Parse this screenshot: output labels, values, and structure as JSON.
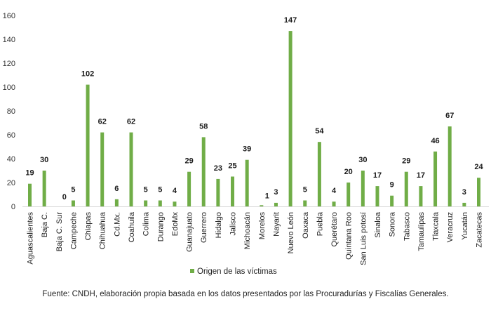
{
  "chart_data": {
    "type": "bar",
    "title": "",
    "xlabel": "",
    "ylabel": "",
    "ylim": [
      0,
      160
    ],
    "yticks": [
      0,
      20,
      40,
      60,
      80,
      100,
      120,
      140,
      160
    ],
    "grid": false,
    "legend_position": "bottom",
    "bar_color": "#70ad47",
    "categories": [
      "Aguascalientes",
      "Baja C.",
      "Baja C. Sur",
      "Campeche",
      "Chiapas",
      "Chihuahua",
      "Cd.Mx.",
      "Coahuila",
      "Colima",
      "Durango",
      "EdoMx",
      "Guanajuato",
      "Guerrero",
      "Hidalgo",
      "Jalisco",
      "Michoacán",
      "Morelos",
      "Nayarit",
      "Nuevo León",
      "Oaxaca",
      "Puebla",
      "Querétaro",
      "Quintana Roo",
      "San Luis potosí",
      "Sinaloa",
      "Sonora",
      "Tabasco",
      "Tamaulipas",
      "Tlaxcala",
      "Veracruz",
      "Yucatán",
      "Zacatecas"
    ],
    "series": [
      {
        "name": "Origen de las víctimas",
        "values": [
          19,
          30,
          0,
          5,
          102,
          62,
          6,
          62,
          5,
          5,
          4,
          29,
          58,
          23,
          25,
          39,
          1,
          3,
          147,
          5,
          54,
          4,
          20,
          30,
          17,
          9,
          29,
          17,
          46,
          67,
          3,
          24
        ]
      }
    ]
  },
  "footer": {
    "source": "Fuente: CNDH, elaboración propia basada en los datos presentados por las Procuradurías y Fiscalías Generales."
  }
}
